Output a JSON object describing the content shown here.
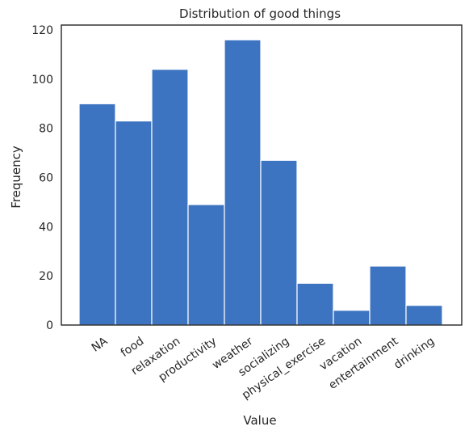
{
  "chart_data": {
    "type": "bar",
    "title": "Distribution of good things",
    "xlabel": "Value",
    "ylabel": "Frequency",
    "categories": [
      "NA",
      "food",
      "relaxation",
      "productivity",
      "weather",
      "socializing",
      "physical_exercise",
      "vacation",
      "entertainment",
      "drinking"
    ],
    "values": [
      90,
      83,
      104,
      49,
      116,
      67,
      17,
      6,
      24,
      8
    ],
    "yticks": [
      0,
      20,
      40,
      60,
      80,
      100,
      120
    ],
    "ylim": [
      0,
      122
    ],
    "color": "#3d74c1",
    "grid": false,
    "legend": false
  }
}
